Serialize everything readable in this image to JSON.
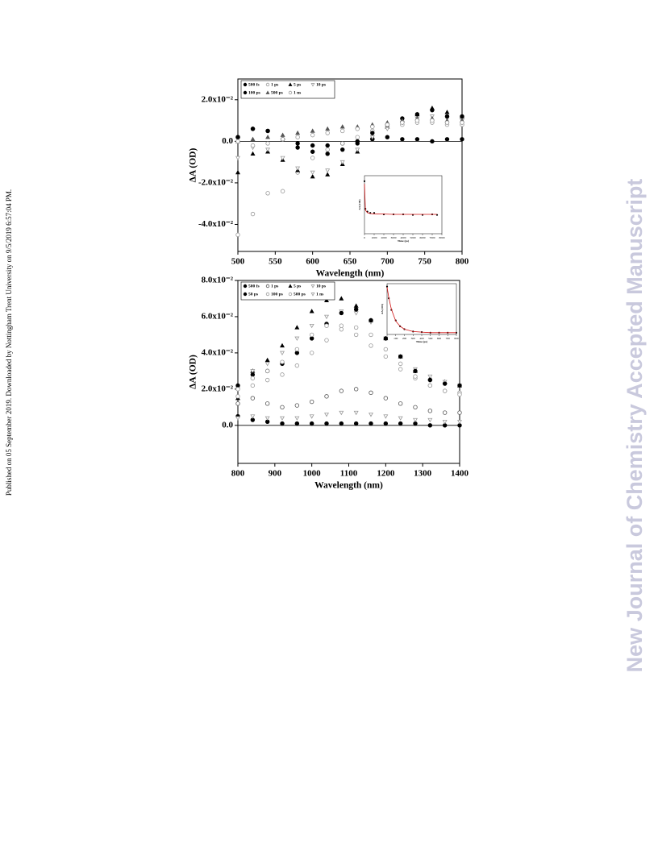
{
  "side_note": "Published on 05 September 2019. Downloaded by Nottingham Trent University on 9/5/2019 6:57:04 PM.",
  "journal_watermark": "New Journal of Chemistry Accepted Manuscript",
  "chart_data": [
    {
      "type": "scatter",
      "xlabel": "Wavelength (nm)",
      "ylabel": "ΔA (OD)",
      "xlim": [
        500,
        800
      ],
      "xticks": [
        500,
        550,
        600,
        650,
        700,
        750,
        800
      ],
      "ylim": [
        -0.053,
        0.03
      ],
      "yticks": [
        {
          "value": -0.04,
          "label": "-4.0x10⁻²"
        },
        {
          "value": -0.02,
          "label": "-2.0x10⁻²"
        },
        {
          "value": 0,
          "label": "0.0"
        },
        {
          "value": 0.02,
          "label": "2.0x10⁻²"
        }
      ],
      "legend": "upper left",
      "x": [
        500,
        520,
        540,
        560,
        580,
        600,
        620,
        640,
        660,
        680,
        700,
        720,
        740,
        760,
        780,
        800
      ],
      "series": [
        {
          "name": "500 fs",
          "color": "#000000",
          "marker": "circle",
          "values": [
            0.002,
            0.006,
            0.005,
            0.001,
            -0.001,
            -0.002,
            -0.002,
            -0.001,
            0,
            0.001,
            0.002,
            0.001,
            0.001,
            0,
            0.001,
            0.001
          ]
        },
        {
          "name": "1 ps",
          "color": "#9a9a9a",
          "marker": "open-circle",
          "values": [
            -0.045,
            -0.035,
            -0.025,
            -0.024,
            -0.015,
            -0.008,
            -0.004,
            -0.001,
            0.002,
            0.005,
            0.007,
            0.008,
            0.009,
            0.009,
            0.008,
            0.008
          ]
        },
        {
          "name": "5 ps",
          "color": "#000000",
          "marker": "triangle",
          "values": [
            -0.015,
            -0.006,
            -0.005,
            -0.009,
            -0.014,
            -0.017,
            -0.016,
            -0.011,
            -0.005,
            0.002,
            0.007,
            0.01,
            0.013,
            0.016,
            0.014,
            0.012
          ]
        },
        {
          "name": "10 ps",
          "color": "#9a9a9a",
          "marker": "open-triangle-down",
          "values": [
            -0.008,
            -0.003,
            -0.004,
            -0.008,
            -0.013,
            -0.015,
            -0.014,
            -0.01,
            -0.004,
            0.002,
            0.006,
            0.009,
            0.011,
            0.012,
            0.011,
            0.01
          ]
        },
        {
          "name": "100 ps",
          "color": "#000000",
          "marker": "circle",
          "values": [
            0.002,
            0.006,
            0.005,
            0.001,
            -0.003,
            -0.005,
            -0.006,
            -0.004,
            -0.001,
            0.004,
            0.008,
            0.011,
            0.013,
            0.015,
            0.012,
            0.012
          ]
        },
        {
          "name": "500 ps",
          "color": "#555555",
          "marker": "triangle",
          "values": [
            0,
            0.001,
            0.002,
            0.003,
            0.004,
            0.005,
            0.006,
            0.007,
            0.007,
            0.008,
            0.009,
            0.01,
            0.011,
            0.011,
            0.01,
            0.01
          ]
        },
        {
          "name": "1 ns",
          "color": "#9a9a9a",
          "marker": "open-circle",
          "values": [
            0,
            -0.002,
            -0.001,
            0.001,
            0.002,
            0.003,
            0.004,
            0.005,
            0.006,
            0.007,
            0.008,
            0.009,
            0.01,
            0.01,
            0.009,
            0.009
          ]
        }
      ]
    },
    {
      "type": "scatter",
      "xlabel": "Time (ps)",
      "ylabel": "ΔA (OD)",
      "xlim": [
        0,
        8000
      ],
      "xticks": [
        0,
        1000,
        2000,
        3000,
        4000,
        5000,
        6000,
        7000,
        8000
      ],
      "ylim": [
        0.005,
        0.026
      ],
      "x": [
        0,
        100,
        300,
        600,
        1000,
        2000,
        3000,
        4000,
        5000,
        6000,
        7000,
        7500
      ],
      "values": [
        0.024,
        0.014,
        0.013,
        0.0125,
        0.0125,
        0.012,
        0.012,
        0.012,
        0.0118,
        0.0118,
        0.012,
        0.0118
      ],
      "color": "#000000",
      "fit": [
        0.023,
        0.0135,
        0.0126,
        0.0123,
        0.0122,
        0.0121,
        0.012,
        0.012,
        0.012,
        0.012,
        0.012,
        0.012
      ],
      "fit_color": "#d01010"
    },
    {
      "type": "scatter",
      "xlabel": "Wavelength (nm)",
      "ylabel": "ΔA (OD)",
      "xlim": [
        800,
        1400
      ],
      "xticks": [
        800,
        900,
        1000,
        1100,
        1200,
        1300,
        1400
      ],
      "ylim": [
        -0.021,
        0.08
      ],
      "yticks": [
        {
          "value": 0,
          "label": "0.0"
        },
        {
          "value": 0.02,
          "label": "2.0x10⁻²"
        },
        {
          "value": 0.04,
          "label": "4.0x10⁻²"
        },
        {
          "value": 0.06,
          "label": "6.0x10⁻²"
        },
        {
          "value": 0.08,
          "label": "8.0x10⁻²"
        }
      ],
      "legend": "upper left",
      "x": [
        800,
        840,
        880,
        920,
        960,
        1000,
        1040,
        1080,
        1120,
        1160,
        1200,
        1240,
        1280,
        1320,
        1360,
        1400
      ],
      "series": [
        {
          "name": "500 fs",
          "color": "#000000",
          "marker": "circle",
          "values": [
            0.005,
            0.003,
            0.002,
            0.001,
            0.001,
            0.001,
            0.001,
            0.001,
            0.001,
            0.001,
            0.001,
            0.001,
            0.001,
            0,
            0,
            0
          ]
        },
        {
          "name": "1 ps",
          "color": "#555555",
          "marker": "open-circle",
          "values": [
            0.012,
            0.015,
            0.012,
            0.01,
            0.011,
            0.013,
            0.016,
            0.019,
            0.02,
            0.018,
            0.015,
            0.012,
            0.01,
            0.008,
            0.007,
            0.007
          ]
        },
        {
          "name": "5 ps",
          "color": "#000000",
          "marker": "triangle",
          "values": [
            0.015,
            0.03,
            0.036,
            0.044,
            0.054,
            0.063,
            0.069,
            0.07,
            0.066,
            0.058,
            0.048,
            0.038,
            0.03,
            0.026,
            0.024,
            0.022
          ]
        },
        {
          "name": "10 ps",
          "color": "#9a9a9a",
          "marker": "open-triangle-down",
          "values": [
            0.02,
            0.03,
            0.034,
            0.04,
            0.048,
            0.055,
            0.06,
            0.063,
            0.062,
            0.057,
            0.048,
            0.038,
            0.031,
            0.027,
            0.024,
            0.022
          ]
        },
        {
          "name": "50 ps",
          "color": "#000000",
          "marker": "circle",
          "values": [
            0.022,
            0.028,
            0.03,
            0.034,
            0.04,
            0.048,
            0.056,
            0.062,
            0.064,
            0.058,
            0.048,
            0.038,
            0.03,
            0.025,
            0.023,
            0.022
          ]
        },
        {
          "name": "100 ps",
          "color": "#9a9a9a",
          "marker": "open-circle",
          "values": [
            0.02,
            0.026,
            0.03,
            0.035,
            0.042,
            0.05,
            0.055,
            0.055,
            0.05,
            0.044,
            0.038,
            0.031,
            0.026,
            0.022,
            0.019,
            0.018
          ]
        },
        {
          "name": "500 ps",
          "color": "#9a9a9a",
          "marker": "open-circle",
          "values": [
            0.016,
            0.022,
            0.025,
            0.028,
            0.033,
            0.04,
            0.047,
            0.053,
            0.054,
            0.05,
            0.042,
            0.034,
            0.027,
            0.022,
            0.019,
            0.017
          ]
        },
        {
          "name": "1 ns",
          "color": "#9a9a9a",
          "marker": "open-triangle-down",
          "values": [
            0.004,
            0.005,
            0.004,
            0.004,
            0.004,
            0.005,
            0.006,
            0.007,
            0.007,
            0.006,
            0.005,
            0.004,
            0.003,
            0.003,
            0.002,
            0.002
          ]
        }
      ]
    },
    {
      "type": "scatter",
      "xlabel": "Time (ps)",
      "ylabel": "ΔA (OD)",
      "xlim": [
        0,
        800
      ],
      "xticks": [
        0,
        100,
        200,
        300,
        400,
        500,
        600,
        700,
        800
      ],
      "ylim": [
        -0.002,
        0.085
      ],
      "x": [
        0,
        20,
        50,
        100,
        150,
        200,
        300,
        400,
        500,
        600,
        700,
        800
      ],
      "values": [
        0.08,
        0.06,
        0.04,
        0.022,
        0.012,
        0.007,
        0.003,
        0.002,
        0.001,
        0.001,
        0.001,
        0.001
      ],
      "color": "#000000",
      "fit": [
        0.079,
        0.061,
        0.041,
        0.021,
        0.012,
        0.007,
        0.003,
        0.002,
        0.001,
        0.001,
        0.001,
        0.001
      ],
      "fit_color": "#d01010"
    }
  ]
}
